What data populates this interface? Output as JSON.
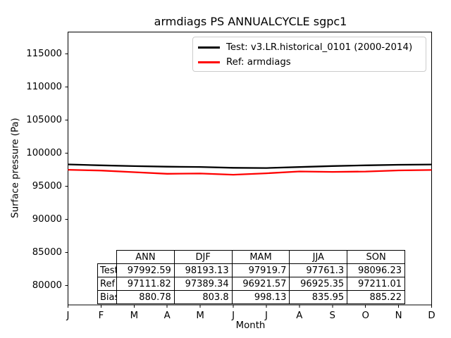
{
  "title": "armdiags PS ANNUALCYCLE sgpc1",
  "axes": {
    "xlabel": "Month",
    "ylabel": "Surface pressure (Pa)",
    "x_tick_labels": [
      "J",
      "F",
      "M",
      "A",
      "M",
      "J",
      "J",
      "A",
      "S",
      "O",
      "N",
      "D"
    ],
    "y_tick_values": [
      115000,
      110000,
      105000,
      100000,
      95000,
      90000,
      85000,
      80000
    ]
  },
  "legend": {
    "position": "upper right",
    "entries": [
      {
        "label": "Test: v3.LR.historical_0101 (2000-2014)",
        "color": "#000000"
      },
      {
        "label": "Ref: armdiags",
        "color": "#ff0000"
      }
    ]
  },
  "chart_data": {
    "type": "line",
    "title": "armdiags PS ANNUALCYCLE sgpc1",
    "xlabel": "Month",
    "ylabel": "Surface pressure (Pa)",
    "x": [
      "J",
      "F",
      "M",
      "A",
      "M",
      "J",
      "J",
      "A",
      "S",
      "O",
      "N",
      "D"
    ],
    "ylim": [
      77000,
      118200
    ],
    "y_ticks": [
      80000,
      85000,
      90000,
      95000,
      100000,
      105000,
      110000,
      115000
    ],
    "grid": false,
    "legend_position": "upper right",
    "series": [
      {
        "name": "Test: v3.LR.historical_0101 (2000-2014)",
        "color": "#000000",
        "values_estimated_monthly": [
          98240,
          98110,
          97990,
          97905,
          97865,
          97730,
          97700,
          97855,
          97995,
          98105,
          98190,
          98230
        ]
      },
      {
        "name": "Ref: armdiags",
        "color": "#ff0000",
        "values_estimated_monthly": [
          97440,
          97320,
          97070,
          96830,
          96870,
          96690,
          96900,
          97186,
          97115,
          97175,
          97345,
          97405
        ]
      }
    ],
    "stats_table": {
      "col_headers": [
        "ANN",
        "DJF",
        "MAM",
        "JJA",
        "SON"
      ],
      "row_headers": [
        "Test",
        "Ref",
        "Bias"
      ],
      "rows": [
        [
          "97992.59",
          "98193.13",
          "97919.7",
          "97761.3",
          "98096.23"
        ],
        [
          "97111.82",
          "97389.34",
          "96921.57",
          "96925.35",
          "97211.01"
        ],
        [
          "880.78",
          "803.8",
          "998.13",
          "835.95",
          "885.22"
        ]
      ]
    }
  }
}
